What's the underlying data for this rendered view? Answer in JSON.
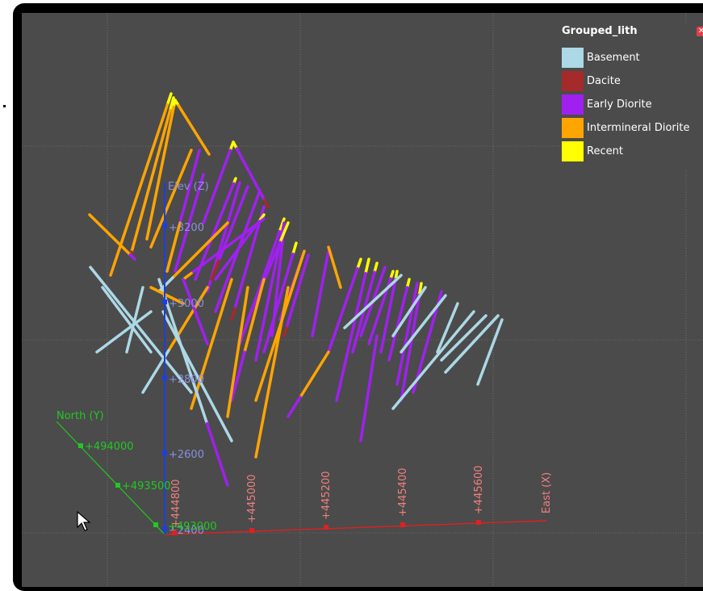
{
  "legend": {
    "title": "Grouped_lith",
    "close_icon": "close-icon",
    "items": [
      {
        "label": "Basement",
        "color": "#add8e6"
      },
      {
        "label": "Dacite",
        "color": "#a52a2a"
      },
      {
        "label": "Early Diorite",
        "color": "#a020f0"
      },
      {
        "label": "Intermineral Diorite",
        "color": "#ffa500"
      },
      {
        "label": "Recent",
        "color": "#ffff00"
      }
    ]
  },
  "axes": {
    "elevation": {
      "label": "Elev (Z)",
      "color": "#1a3fe0",
      "label_color": "#8a90e0",
      "ticks": [
        "+3200",
        "+3000",
        "+2800",
        "+2600",
        "+2400"
      ]
    },
    "north": {
      "label": "North (Y)",
      "color": "#22c822",
      "ticks": [
        "+494000",
        "+493500",
        "+493000"
      ]
    },
    "east": {
      "label": "East (X)",
      "color": "#e02020",
      "label_color": "#f08080",
      "ticks": [
        "+444800",
        "+445000",
        "+445200",
        "+445400",
        "+445600"
      ]
    }
  },
  "cursor_icon": "mouse-pointer-icon"
}
